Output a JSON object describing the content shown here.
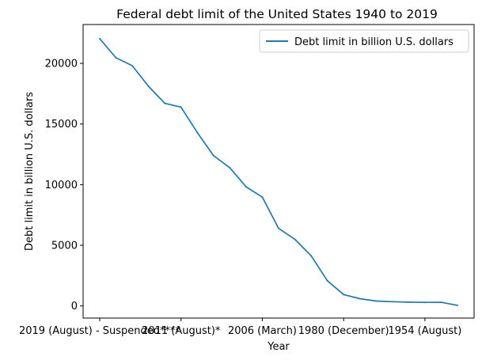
{
  "chart_data": {
    "type": "line",
    "title": "Federal debt limit of the United States 1940 to 2019",
    "xlabel": "Year",
    "ylabel": "Debt limit in billion U.S. dollars",
    "ylim": [
      -1000,
      23200
    ],
    "y_ticks": [
      0,
      5000,
      10000,
      15000,
      20000
    ],
    "x_ticks": [
      {
        "index": 0,
        "label": "2019 (August) - Suspended****"
      },
      {
        "index": 5,
        "label": "2011 (August)*"
      },
      {
        "index": 10,
        "label": "2006 (March)"
      },
      {
        "index": 15,
        "label": "1980 (December)"
      },
      {
        "index": 20,
        "label": "1954 (August)"
      }
    ],
    "legend": {
      "position": "top-right"
    },
    "grid": false,
    "series": [
      {
        "name": "Debt limit in billion U.S. dollars",
        "color": "#1f77b4",
        "values": [
          22030,
          20460,
          19810,
          18110,
          16700,
          16390,
          14290,
          12390,
          11390,
          9820,
          8970,
          6400,
          5500,
          4140,
          2080,
          935,
          600,
          400,
          350,
          310,
          290,
          300,
          49
        ]
      }
    ]
  }
}
